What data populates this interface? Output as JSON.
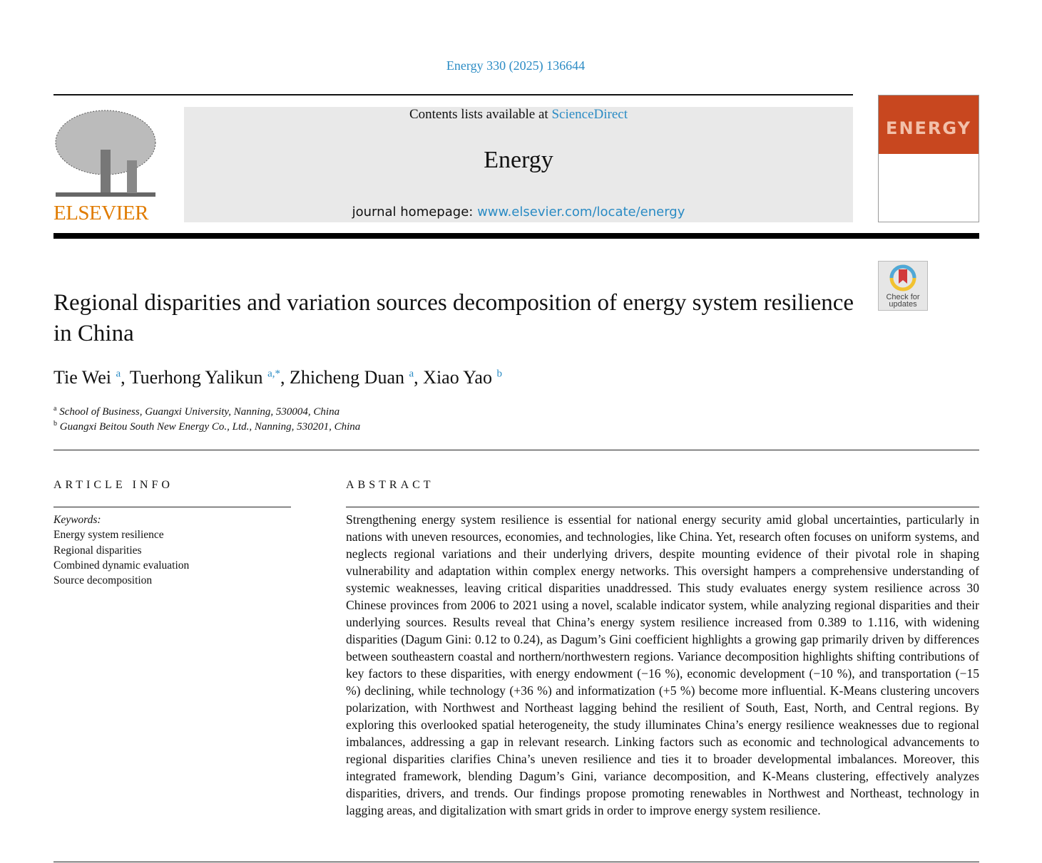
{
  "header": {
    "citation": "Energy 330 (2025) 136644",
    "contents_prefix": "Contents lists available at ",
    "sciencedirect": "ScienceDirect",
    "journal": "Energy",
    "homepage_prefix": "journal homepage: ",
    "homepage_url": "www.elsevier.com/locate/energy",
    "publisher": "ELSEVIER",
    "cover_title": "ENERGY",
    "check_updates": [
      "Check for",
      "updates"
    ]
  },
  "article": {
    "title": "Regional disparities and variation sources decomposition of energy system resilience in China",
    "authors": [
      {
        "name": "Tie Wei",
        "sup": "a"
      },
      {
        "name": "Tuerhong Yalikun",
        "sup": "a,*"
      },
      {
        "name": "Zhicheng Duan",
        "sup": "a"
      },
      {
        "name": "Xiao Yao",
        "sup": "b"
      }
    ],
    "affiliations": [
      {
        "sup": "a",
        "text": "School of Business, Guangxi University, Nanning, 530004, China"
      },
      {
        "sup": "b",
        "text": "Guangxi Beitou South New Energy Co., Ltd., Nanning, 530201, China"
      }
    ]
  },
  "info": {
    "heading": "ARTICLE INFO",
    "keywords_label": "Keywords:",
    "keywords": [
      "Energy system resilience",
      "Regional disparities",
      "Combined dynamic evaluation",
      "Source decomposition"
    ]
  },
  "abstract": {
    "heading": "ABSTRACT",
    "text": "Strengthening energy system resilience is essential for national energy security amid global uncertainties, particularly in nations with uneven resources, economies, and technologies, like China. Yet, research often focuses on uniform systems, and neglects regional variations and their underlying drivers, despite mounting evidence of their pivotal role in shaping vulnerability and adaptation within complex energy networks. This oversight hampers a comprehensive understanding of systemic weaknesses, leaving critical disparities unaddressed. This study evaluates energy system resilience across 30 Chinese provinces from 2006 to 2021 using a novel, scalable indicator system, while analyzing regional disparities and their underlying sources. Results reveal that China’s energy system resilience increased from 0.389 to 1.116, with widening disparities (Dagum Gini: 0.12 to 0.24), as Dagum’s Gini coefficient highlights a growing gap primarily driven by differences between southeastern coastal and northern/northwestern regions. Variance decomposition highlights shifting contributions of key factors to these disparities, with energy endowment (−16 %), economic development (−10 %), and transportation (−15 %) declining, while technology (+36 %) and informatization (+5 %) become more influential. K-Means clustering uncovers polarization, with Northwest and Northeast lagging behind the resilient of South, East, North, and Central regions. By exploring this overlooked spatial heterogeneity, the study illuminates China’s energy resilience weaknesses due to regional imbalances, addressing a gap in relevant research. Linking factors such as economic and technological advancements to regional disparities clarifies China’s uneven resilience and ties it to broader developmental imbalances. Moreover, this integrated framework, blending Dagum’s Gini, variance decomposition, and K-Means clustering, effectively analyzes disparities, drivers, and trends. Our findings propose promoting renewables in Northwest and Northeast, technology in lagging areas, and digitalization with smart grids in order to improve energy system resilience."
  }
}
